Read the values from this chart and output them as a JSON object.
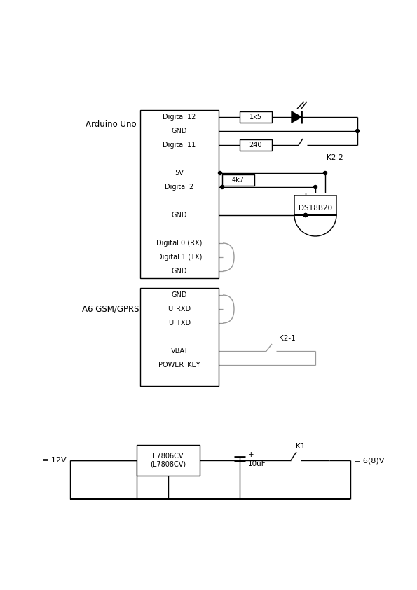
{
  "bg_color": "#ffffff",
  "lc": "#000000",
  "gc": "#999999",
  "arduino_label": "Arduino Uno",
  "gsm_label": "A6 GSM/GPRS",
  "arduino_pins": [
    "Digital 12",
    "GND",
    "Digital 11",
    "",
    "5V",
    "Digital 2",
    "",
    "GND",
    "",
    "Digital 0 (RX)",
    "Digital 1 (TX)",
    "GND"
  ],
  "gsm_pins": [
    "GND",
    "U_RXD",
    "U_TXD",
    "",
    "VBAT",
    "POWER_KEY",
    ""
  ],
  "r1_label": "1k5",
  "r2_label": "240",
  "r3_label": "4k7",
  "k22_label": "K2-2",
  "k21_label": "K2-1",
  "k1_label": "K1",
  "ds_label": "DS18B20",
  "reg_label": "L7806CV\n(L7808CV)",
  "cap_label": "10uF",
  "v12_label": "= 12V",
  "v6_label": "= 6(8)V"
}
